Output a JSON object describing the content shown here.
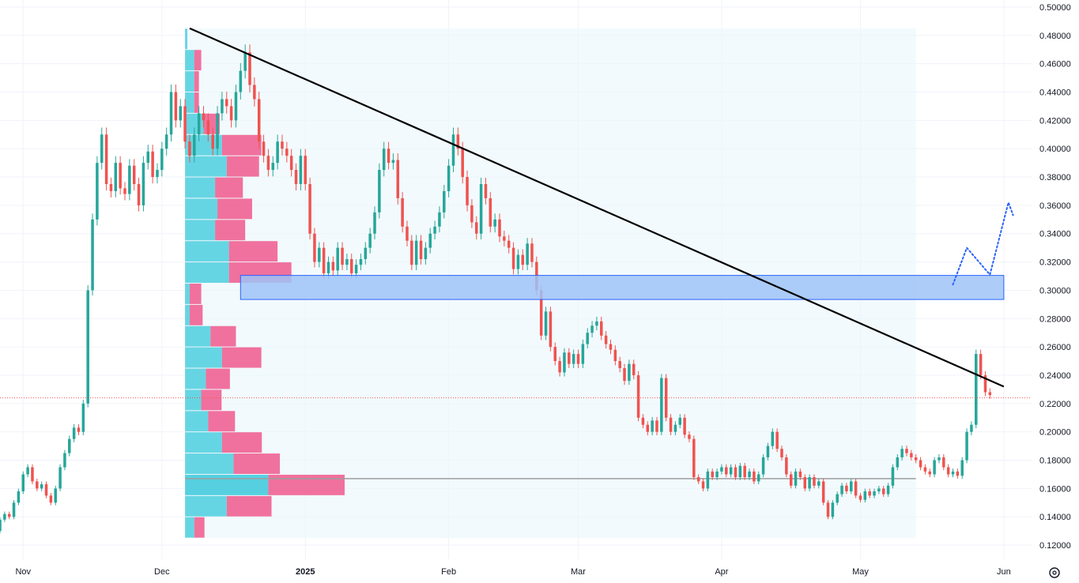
{
  "chart_data": {
    "type": "candlestick",
    "y_axis": {
      "range": [
        0.11,
        0.505
      ],
      "position": "right",
      "ticks": [
        "0.50000",
        "0.48000",
        "0.46000",
        "0.44000",
        "0.42000",
        "0.40000",
        "0.38000",
        "0.36000",
        "0.34000",
        "0.32000",
        "0.30000",
        "0.28000",
        "0.26000",
        "0.24000",
        "0.22000",
        "0.20000",
        "0.18000",
        "0.16000",
        "0.14000",
        "0.12000"
      ]
    },
    "x_axis": {
      "range": [
        "2024-10-27",
        "2025-06-07"
      ],
      "ticks": [
        {
          "label": "Nov",
          "date": "2024-11-01",
          "bold": false
        },
        {
          "label": "Dec",
          "date": "2024-12-01",
          "bold": false
        },
        {
          "label": "2025",
          "date": "2025-01-01",
          "bold": true
        },
        {
          "label": "Feb",
          "date": "2025-02-01",
          "bold": false
        },
        {
          "label": "Mar",
          "date": "2025-03-01",
          "bold": false
        },
        {
          "label": "Apr",
          "date": "2025-04-01",
          "bold": false
        },
        {
          "label": "May",
          "date": "2025-05-01",
          "bold": false
        },
        {
          "label": "Jun",
          "date": "2025-06-01",
          "bold": false
        }
      ]
    },
    "grid": true,
    "colors": {
      "up": "#26a69a",
      "down": "#ef5350",
      "trendline": "#000000",
      "zone_fill": "#9fc3f7",
      "zone_stroke": "#2962ff",
      "projection": "#2962ff",
      "current_price": "#ef5350",
      "vp_up": "#56d0e0",
      "vp_down": "#f06292",
      "poc_line": "#9e9e9e"
    },
    "current_price": 0.224,
    "trendline": {
      "start": {
        "date": "2024-12-07",
        "price": 0.485
      },
      "end": {
        "date": "2025-06-01",
        "price": 0.232
      }
    },
    "resistance_zone": {
      "start": "2024-12-18",
      "end": "2025-06-01",
      "low": 0.2935,
      "high": 0.3105
    },
    "poc_level": {
      "price": 0.167,
      "start": "2024-12-06",
      "end": "2025-05-13"
    },
    "projection_path": [
      {
        "date": "2025-05-21",
        "price": 0.304
      },
      {
        "date": "2025-05-24",
        "price": 0.33
      },
      {
        "date": "2025-05-29",
        "price": 0.311
      },
      {
        "date": "2025-06-02",
        "price": 0.362
      },
      {
        "date": "2025-06-03",
        "price": 0.353
      }
    ],
    "volume_profile": {
      "start": "2024-12-06",
      "end": "2025-05-13",
      "rows": [
        {
          "low": 0.47,
          "high": 0.485,
          "up": 0.5,
          "down": 0
        },
        {
          "low": 0.455,
          "high": 0.47,
          "up": 2,
          "down": 1.5
        },
        {
          "low": 0.44,
          "high": 0.455,
          "up": 2,
          "down": 1
        },
        {
          "low": 0.425,
          "high": 0.44,
          "up": 2,
          "down": 1
        },
        {
          "low": 0.41,
          "high": 0.425,
          "up": 4,
          "down": 3.5
        },
        {
          "low": 0.395,
          "high": 0.41,
          "up": 8,
          "down": 8.5
        },
        {
          "low": 0.38,
          "high": 0.395,
          "up": 9,
          "down": 7
        },
        {
          "low": 0.365,
          "high": 0.38,
          "up": 6.5,
          "down": 6
        },
        {
          "low": 0.35,
          "high": 0.365,
          "up": 7,
          "down": 7.5
        },
        {
          "low": 0.335,
          "high": 0.35,
          "up": 6.5,
          "down": 6.5
        },
        {
          "low": 0.32,
          "high": 0.335,
          "up": 9.5,
          "down": 10.5
        },
        {
          "low": 0.305,
          "high": 0.32,
          "up": 9.5,
          "down": 13.5
        },
        {
          "low": 0.29,
          "high": 0.305,
          "up": 1,
          "down": 2.5
        },
        {
          "low": 0.275,
          "high": 0.29,
          "up": 1,
          "down": 2.8
        },
        {
          "low": 0.26,
          "high": 0.275,
          "up": 5.5,
          "down": 5.5
        },
        {
          "low": 0.245,
          "high": 0.26,
          "up": 8,
          "down": 8.5
        },
        {
          "low": 0.23,
          "high": 0.245,
          "up": 4.5,
          "down": 5.2
        },
        {
          "low": 0.215,
          "high": 0.23,
          "up": 3.5,
          "down": 4.4
        },
        {
          "low": 0.2,
          "high": 0.215,
          "up": 5,
          "down": 5.8
        },
        {
          "low": 0.185,
          "high": 0.2,
          "up": 8,
          "down": 8.6
        },
        {
          "low": 0.17,
          "high": 0.185,
          "up": 10.5,
          "down": 10
        },
        {
          "low": 0.155,
          "high": 0.17,
          "up": 18,
          "down": 16.5
        },
        {
          "low": 0.14,
          "high": 0.155,
          "up": 9,
          "down": 9.7
        },
        {
          "low": 0.125,
          "high": 0.14,
          "up": 2,
          "down": 2.2
        }
      ]
    },
    "candles_note": "daily OHLC, closes read off chart; open = previous close",
    "candles": {
      "start_date": "2024-10-27",
      "start_open": 0.13,
      "close": [
        0.138,
        0.142,
        0.14,
        0.15,
        0.158,
        0.17,
        0.175,
        0.165,
        0.16,
        0.163,
        0.155,
        0.15,
        0.16,
        0.175,
        0.185,
        0.195,
        0.203,
        0.2,
        0.22,
        0.3,
        0.35,
        0.39,
        0.41,
        0.375,
        0.37,
        0.39,
        0.372,
        0.368,
        0.388,
        0.375,
        0.36,
        0.39,
        0.398,
        0.38,
        0.385,
        0.4,
        0.41,
        0.44,
        0.42,
        0.43,
        0.405,
        0.395,
        0.41,
        0.425,
        0.42,
        0.41,
        0.4,
        0.425,
        0.435,
        0.43,
        0.42,
        0.44,
        0.455,
        0.468,
        0.445,
        0.435,
        0.405,
        0.395,
        0.385,
        0.39,
        0.405,
        0.4,
        0.395,
        0.385,
        0.375,
        0.395,
        0.375,
        0.34,
        0.32,
        0.33,
        0.312,
        0.32,
        0.314,
        0.33,
        0.318,
        0.322,
        0.312,
        0.318,
        0.322,
        0.33,
        0.34,
        0.355,
        0.385,
        0.4,
        0.39,
        0.392,
        0.365,
        0.345,
        0.335,
        0.318,
        0.335,
        0.322,
        0.33,
        0.34,
        0.345,
        0.355,
        0.37,
        0.388,
        0.41,
        0.4,
        0.38,
        0.36,
        0.348,
        0.34,
        0.375,
        0.365,
        0.345,
        0.35,
        0.338,
        0.335,
        0.33,
        0.315,
        0.325,
        0.318,
        0.333,
        0.32,
        0.3,
        0.268,
        0.285,
        0.26,
        0.25,
        0.242,
        0.256,
        0.248,
        0.255,
        0.248,
        0.262,
        0.27,
        0.275,
        0.278,
        0.268,
        0.262,
        0.258,
        0.25,
        0.245,
        0.236,
        0.248,
        0.24,
        0.21,
        0.205,
        0.2,
        0.208,
        0.2,
        0.238,
        0.21,
        0.2,
        0.205,
        0.21,
        0.198,
        0.195,
        0.168,
        0.165,
        0.16,
        0.172,
        0.168,
        0.172,
        0.175,
        0.17,
        0.175,
        0.168,
        0.176,
        0.168,
        0.172,
        0.165,
        0.17,
        0.182,
        0.19,
        0.2,
        0.188,
        0.182,
        0.17,
        0.162,
        0.172,
        0.168,
        0.16,
        0.168,
        0.162,
        0.165,
        0.15,
        0.14,
        0.15,
        0.156,
        0.162,
        0.158,
        0.165,
        0.155,
        0.152,
        0.158,
        0.155,
        0.158,
        0.16,
        0.156,
        0.162,
        0.175,
        0.182,
        0.188,
        0.185,
        0.182,
        0.18,
        0.175,
        0.172,
        0.17,
        0.18,
        0.182,
        0.175,
        0.17,
        0.172,
        0.169,
        0.18,
        0.2,
        0.205,
        0.255,
        0.24,
        0.228,
        0.226
      ]
    }
  }
}
